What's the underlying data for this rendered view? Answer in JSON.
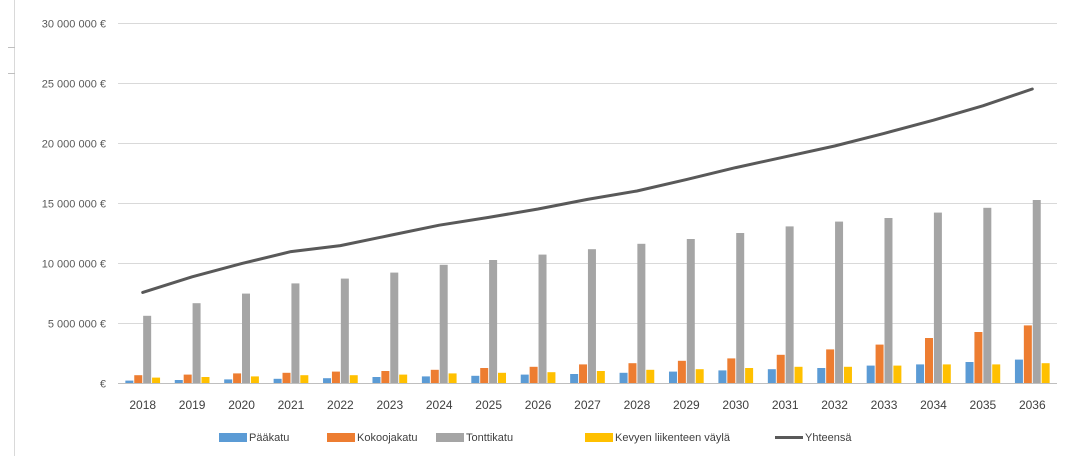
{
  "chart_data": {
    "type": "bar",
    "title": "",
    "xlabel": "",
    "ylabel": "",
    "ylim": [
      0,
      30000000
    ],
    "yticks": [
      0,
      5000000,
      10000000,
      15000000,
      20000000,
      25000000,
      30000000
    ],
    "ytick_labels": [
      "€",
      "5 000 000 €",
      "10 000 000 €",
      "15 000 000 €",
      "20 000 000 €",
      "25 000 000 €",
      "30 000 000 €"
    ],
    "grid": true,
    "legend_position": "bottom",
    "categories": [
      "2018",
      "2019",
      "2020",
      "2021",
      "2022",
      "2023",
      "2024",
      "2025",
      "2026",
      "2027",
      "2028",
      "2029",
      "2030",
      "2031",
      "2032",
      "2033",
      "2034",
      "2035",
      "2036"
    ],
    "series": [
      {
        "name": "Pääkatu",
        "kind": "bar",
        "color": "#5B9BD5",
        "values": [
          200000,
          250000,
          300000,
          350000,
          400000,
          500000,
          550000,
          600000,
          700000,
          750000,
          850000,
          950000,
          1050000,
          1150000,
          1250000,
          1450000,
          1550000,
          1750000,
          1950000
        ]
      },
      {
        "name": "Kokoojakatu",
        "kind": "bar",
        "color": "#ED7D31",
        "values": [
          650000,
          700000,
          800000,
          850000,
          950000,
          1000000,
          1100000,
          1250000,
          1350000,
          1550000,
          1650000,
          1850000,
          2050000,
          2350000,
          2800000,
          3200000,
          3750000,
          4250000,
          4800000
        ]
      },
      {
        "name": "Tonttikatu",
        "kind": "bar",
        "color": "#A5A5A5",
        "values": [
          5600000,
          6650000,
          7450000,
          8300000,
          8700000,
          9200000,
          9850000,
          10250000,
          10700000,
          11150000,
          11600000,
          12000000,
          12500000,
          13050000,
          13450000,
          13750000,
          14200000,
          14600000,
          15250000
        ]
      },
      {
        "name": "Kevyen liikenteen väylä",
        "kind": "bar",
        "color": "#FFC000",
        "values": [
          450000,
          500000,
          550000,
          650000,
          650000,
          700000,
          800000,
          850000,
          900000,
          1000000,
          1100000,
          1150000,
          1250000,
          1350000,
          1350000,
          1450000,
          1550000,
          1550000,
          1650000
        ]
      },
      {
        "name": "Yhteensä",
        "kind": "line",
        "color": "#595959",
        "values": [
          7550000,
          8850000,
          9950000,
          10950000,
          11450000,
          12300000,
          13150000,
          13800000,
          14500000,
          15300000,
          16000000,
          16950000,
          17950000,
          18850000,
          19750000,
          20800000,
          21900000,
          23100000,
          24500000
        ]
      }
    ]
  }
}
